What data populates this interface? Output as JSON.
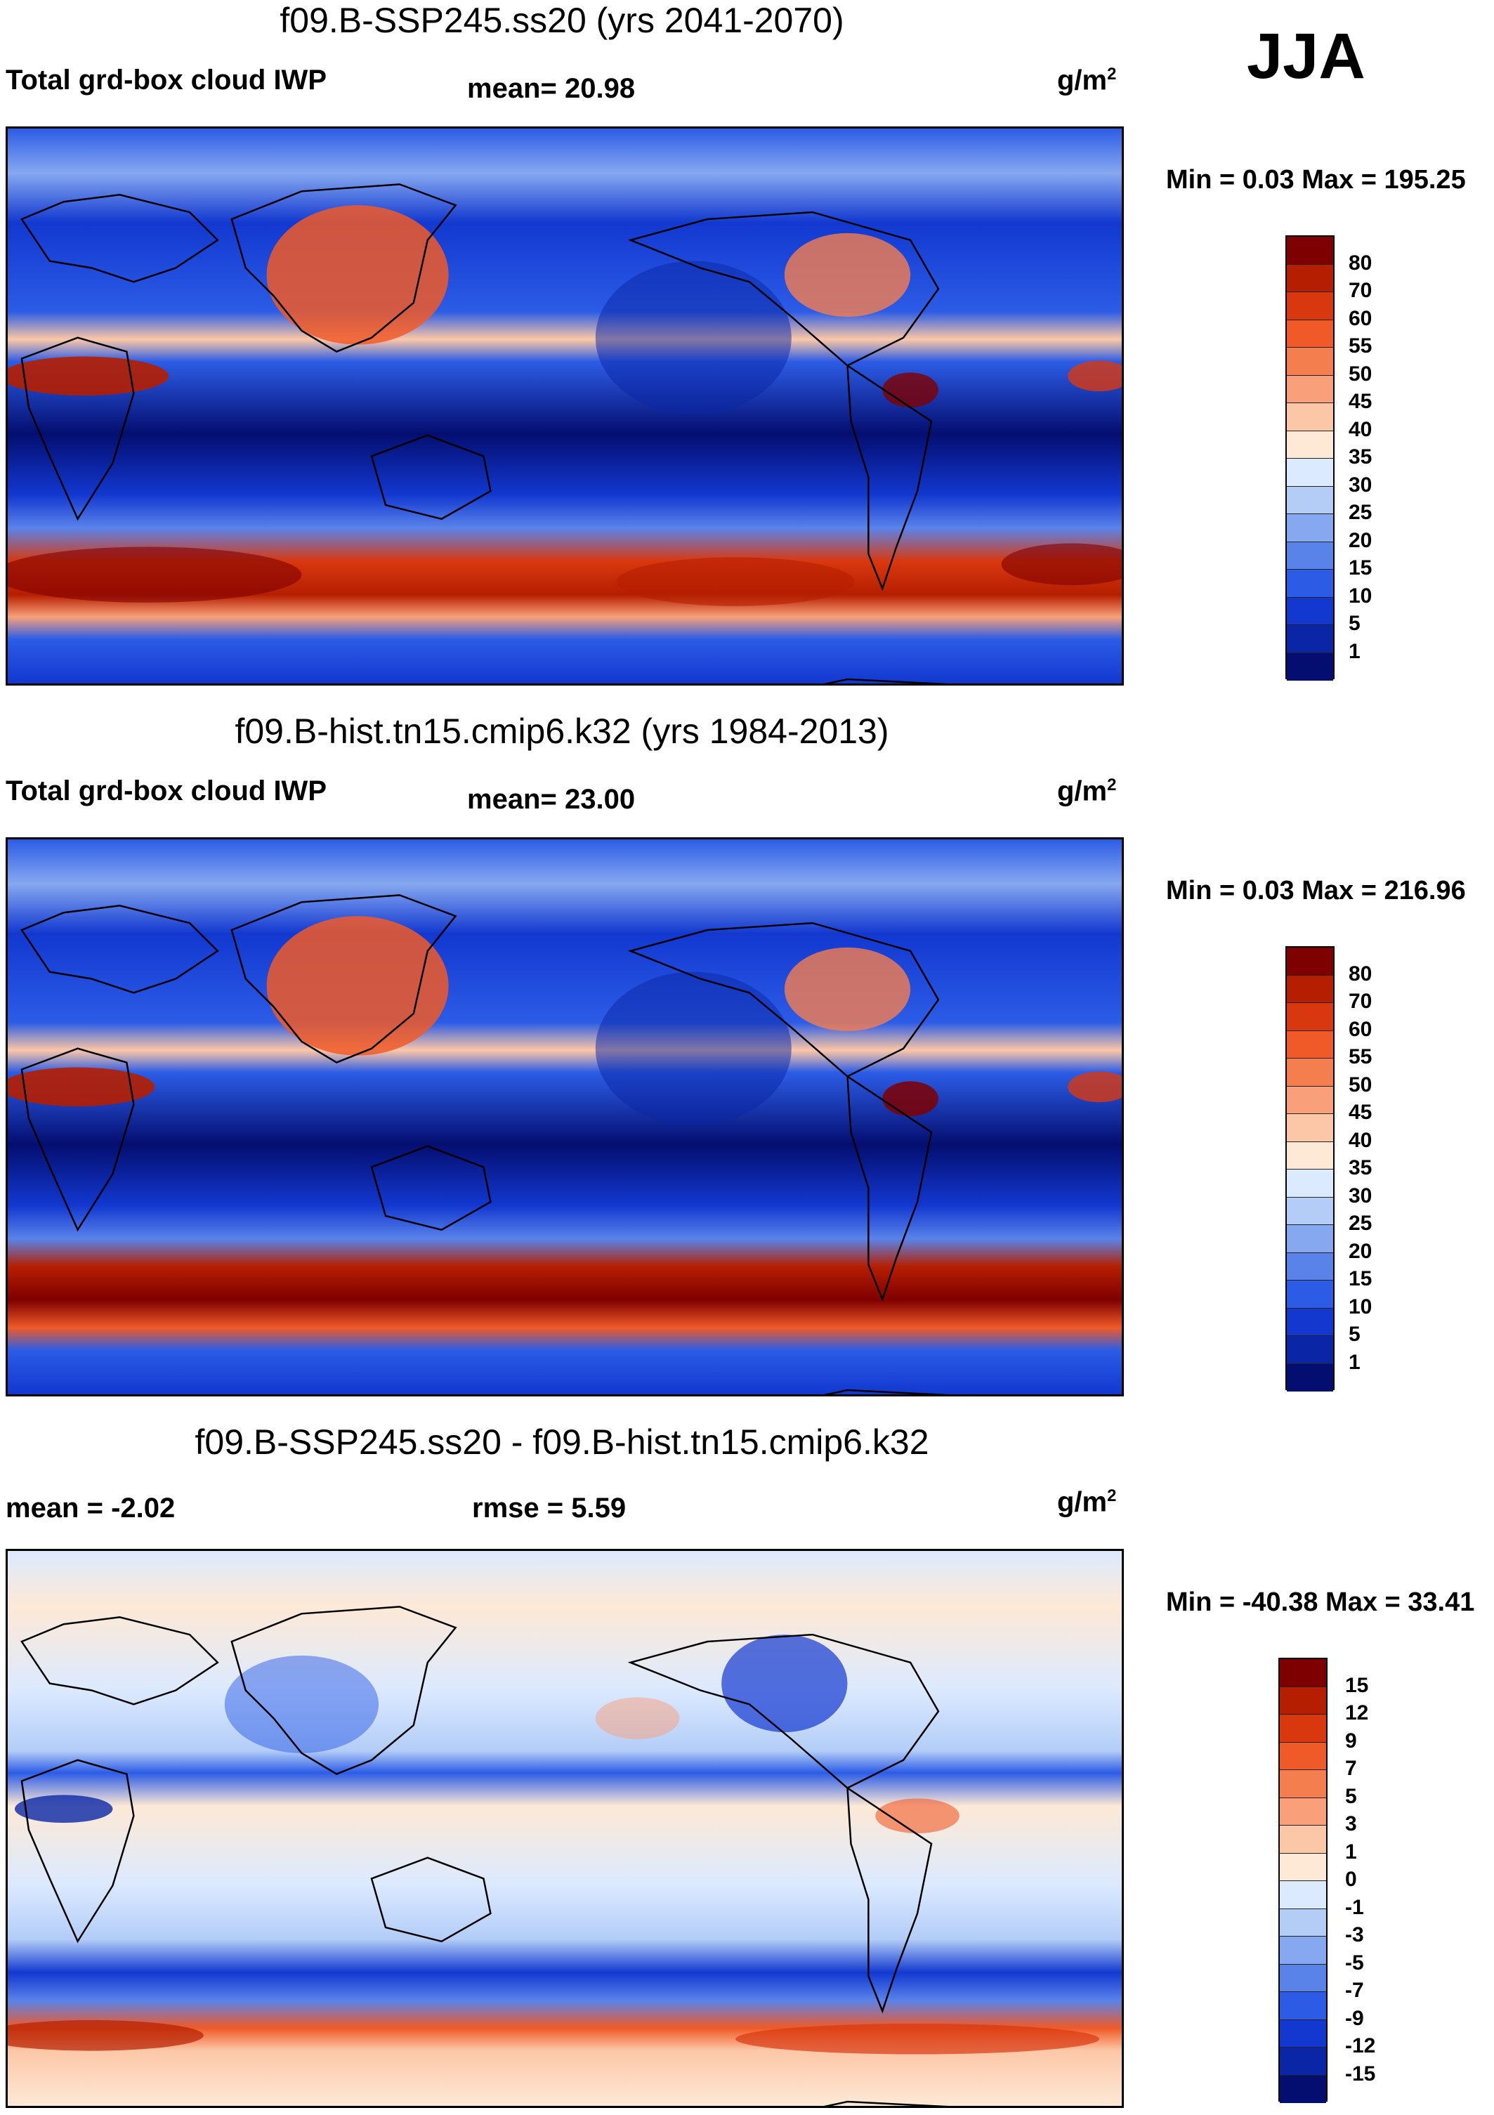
{
  "season": "JJA",
  "units": "g/m",
  "units_exp": "2",
  "panels": [
    {
      "title": "f09.B-SSP245.ss20 (yrs 2041-2070)",
      "var_label": "Total grd-box cloud IWP",
      "stat1": "mean=  20.98",
      "stat2": "",
      "minmax": "Min =   0.03 Max = 195.25",
      "levels": [
        "80",
        "70",
        "60",
        "55",
        "50",
        "45",
        "40",
        "35",
        "30",
        "25",
        "20",
        "15",
        "10",
        "5",
        "1"
      ]
    },
    {
      "title": "f09.B-hist.tn15.cmip6.k32 (yrs 1984-2013)",
      "var_label": "Total grd-box cloud IWP",
      "stat1": "mean=  23.00",
      "stat2": "",
      "minmax": "Min =   0.03 Max = 216.96",
      "levels": [
        "80",
        "70",
        "60",
        "55",
        "50",
        "45",
        "40",
        "35",
        "30",
        "25",
        "20",
        "15",
        "10",
        "5",
        "1"
      ]
    },
    {
      "title": "f09.B-SSP245.ss20 - f09.B-hist.tn15.cmip6.k32",
      "var_label": "mean =  -2.02",
      "stat1": "rmse =    5.59",
      "stat2": "",
      "minmax": "Min = -40.38 Max =  33.41",
      "levels": [
        "15",
        "12",
        "9",
        "7",
        "5",
        "3",
        "1",
        "0",
        "-1",
        "-3",
        "-5",
        "-7",
        "-9",
        "-12",
        "-15"
      ]
    }
  ],
  "colors": {
    "abs_scale": [
      "#7f0000",
      "#b51e00",
      "#d9380f",
      "#f05a28",
      "#f57e4f",
      "#f9a07a",
      "#fcc7a6",
      "#fde9d6",
      "#dceaff",
      "#b3cdf7",
      "#86a8f0",
      "#5a83ea",
      "#2c5ce6",
      "#1238d0",
      "#0a25a6",
      "#040e70"
    ],
    "diff_scale": [
      "#7f0000",
      "#b51e00",
      "#d9380f",
      "#f05a28",
      "#f57e4f",
      "#f9a07a",
      "#fcc7a6",
      "#fde9d6",
      "#dceaff",
      "#b3cdf7",
      "#86a8f0",
      "#5a83ea",
      "#2c5ce6",
      "#1238d0",
      "#0a25a6",
      "#040e70"
    ]
  }
}
